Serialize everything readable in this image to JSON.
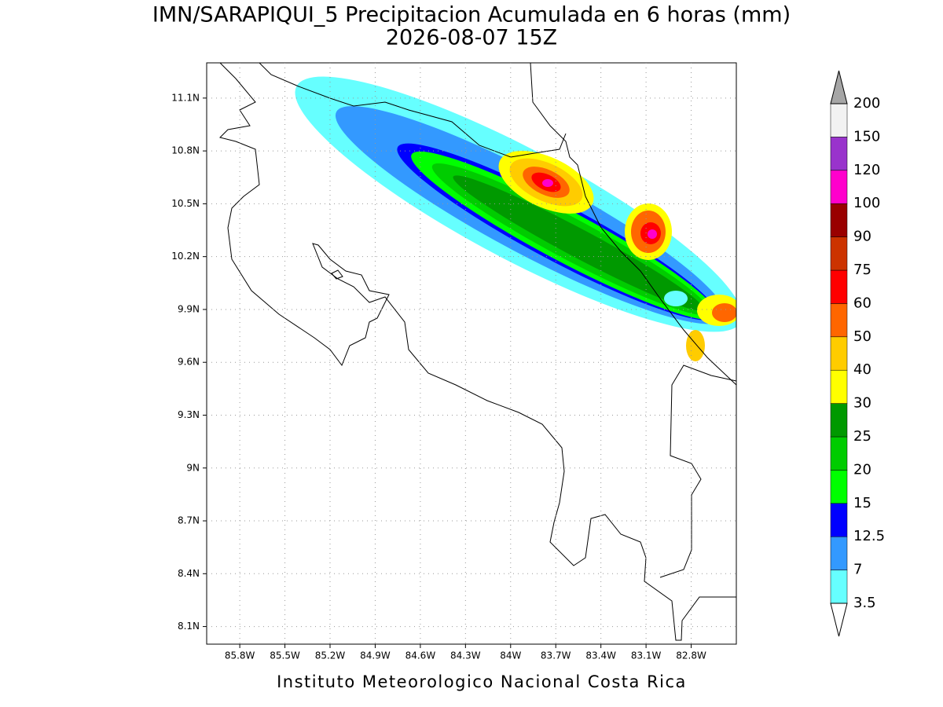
{
  "title": "IMN/SARAPIQUI_5 Precipitacion Acumulada en 6 horas (mm)",
  "subtitle": "2026-08-07 15Z",
  "footer": "Instituto Meteorologico Nacional Costa Rica",
  "map": {
    "xlim": [
      -86.02,
      -82.5
    ],
    "ylim": [
      8.0,
      11.3
    ],
    "xticks": [
      {
        "value": -85.8,
        "label": "85.8W"
      },
      {
        "value": -85.5,
        "label": "85.5W"
      },
      {
        "value": -85.2,
        "label": "85.2W"
      },
      {
        "value": -84.9,
        "label": "84.9W"
      },
      {
        "value": -84.6,
        "label": "84.6W"
      },
      {
        "value": -84.3,
        "label": "84.3W"
      },
      {
        "value": -84.0,
        "label": "84W"
      },
      {
        "value": -83.7,
        "label": "83.7W"
      },
      {
        "value": -83.4,
        "label": "83.4W"
      },
      {
        "value": -83.1,
        "label": "83.1W"
      },
      {
        "value": -82.8,
        "label": "82.8W"
      }
    ],
    "yticks": [
      {
        "value": 8.1,
        "label": "8.1N"
      },
      {
        "value": 8.4,
        "label": "8.4N"
      },
      {
        "value": 8.7,
        "label": "8.7N"
      },
      {
        "value": 9.0,
        "label": "9N"
      },
      {
        "value": 9.3,
        "label": "9.3N"
      },
      {
        "value": 9.6,
        "label": "9.6N"
      },
      {
        "value": 9.9,
        "label": "9.9N"
      },
      {
        "value": 10.2,
        "label": "10.2N"
      },
      {
        "value": 10.5,
        "label": "10.5N"
      },
      {
        "value": 10.8,
        "label": "10.8N"
      },
      {
        "value": 11.1,
        "label": "11.1N"
      }
    ]
  },
  "colorbar": {
    "levels": [
      3.5,
      7,
      12.5,
      15,
      20,
      25,
      30,
      40,
      50,
      60,
      75,
      90,
      100,
      120,
      150,
      200
    ],
    "colors": [
      "#66ffff",
      "#3399ff",
      "#0000ff",
      "#00ff00",
      "#00cc00",
      "#009900",
      "#ffff00",
      "#ffcc00",
      "#ff6600",
      "#ff0000",
      "#cc3300",
      "#990000",
      "#ff00cc",
      "#9933cc",
      "#f2f2f2"
    ],
    "over_color": "#a6a6a6",
    "under_color": "#ffffff"
  }
}
